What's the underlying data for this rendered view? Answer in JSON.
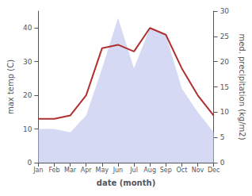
{
  "chart_data": {
    "type": "line",
    "categories": [
      "Jan",
      "Feb",
      "Mar",
      "Apr",
      "May",
      "Jun",
      "Jul",
      "Aug",
      "Sep",
      "Oct",
      "Nov",
      "Dec"
    ],
    "series": [
      {
        "type": "area",
        "color": "#c8ccf0",
        "values": [
          10,
          10,
          9,
          14,
          28,
          43,
          28,
          40,
          38,
          22,
          15,
          9
        ]
      },
      {
        "type": "line",
        "color": "#b03030",
        "values": [
          13,
          13,
          14,
          20,
          34,
          35,
          33,
          40,
          38,
          28,
          20,
          14
        ]
      }
    ],
    "xlabel": "date (month)",
    "ylabel": "max temp (C)",
    "y2label": "med. precipitation (kg/m2)",
    "ylim": [
      0,
      45
    ],
    "yticks": [
      0,
      10,
      20,
      30,
      40
    ],
    "y2lim": [
      0,
      30
    ],
    "y2ticks": [
      0,
      5,
      10,
      15,
      20,
      25,
      30
    ],
    "grid": false
  }
}
